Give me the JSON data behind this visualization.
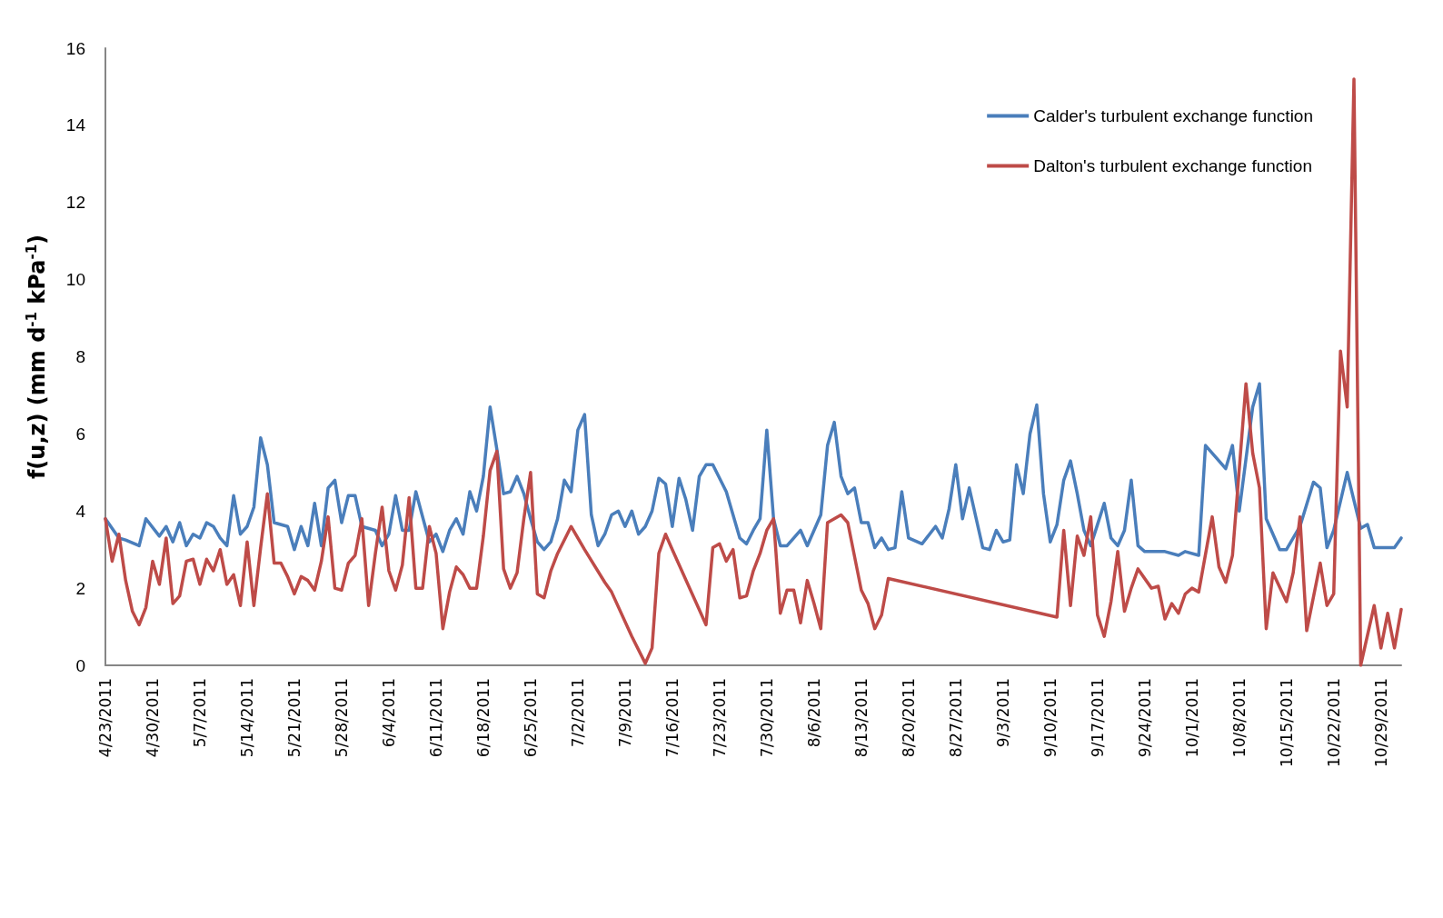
{
  "chart_data": {
    "type": "line",
    "ylabel": "f(u,z) (mm d$^{-1}$ kPa$^{-1}$)",
    "xlim": [
      "2011-04-23",
      "2011-11-01"
    ],
    "ylim": [
      0,
      16
    ],
    "yticks": [
      0,
      2,
      4,
      6,
      8,
      10,
      12,
      14,
      16
    ],
    "xticks": [
      {
        "value": "2011-04-23",
        "label": "4/23/2011"
      },
      {
        "value": "2011-04-30",
        "label": "4/30/2011"
      },
      {
        "value": "2011-05-07",
        "label": "5/7/2011"
      },
      {
        "value": "2011-05-14",
        "label": "5/14/2011"
      },
      {
        "value": "2011-05-21",
        "label": "5/21/2011"
      },
      {
        "value": "2011-05-28",
        "label": "5/28/2011"
      },
      {
        "value": "2011-06-04",
        "label": "6/4/2011"
      },
      {
        "value": "2011-06-11",
        "label": "6/11/2011"
      },
      {
        "value": "2011-06-18",
        "label": "6/18/2011"
      },
      {
        "value": "2011-06-25",
        "label": "6/25/2011"
      },
      {
        "value": "2011-07-02",
        "label": "7/2/2011"
      },
      {
        "value": "2011-07-09",
        "label": "7/9/2011"
      },
      {
        "value": "2011-07-16",
        "label": "7/16/2011"
      },
      {
        "value": "2011-07-23",
        "label": "7/23/2011"
      },
      {
        "value": "2011-07-30",
        "label": "7/30/2011"
      },
      {
        "value": "2011-08-06",
        "label": "8/6/2011"
      },
      {
        "value": "2011-08-13",
        "label": "8/13/2011"
      },
      {
        "value": "2011-08-20",
        "label": "8/20/2011"
      },
      {
        "value": "2011-08-27",
        "label": "8/27/2011"
      },
      {
        "value": "2011-09-03",
        "label": "9/3/2011"
      },
      {
        "value": "2011-09-10",
        "label": "9/10/2011"
      },
      {
        "value": "2011-09-17",
        "label": "9/17/2011"
      },
      {
        "value": "2011-09-24",
        "label": "9/24/2011"
      },
      {
        "value": "2011-10-01",
        "label": "10/1/2011"
      },
      {
        "value": "2011-10-08",
        "label": "10/8/2011"
      },
      {
        "value": "2011-10-15",
        "label": "10/15/2011"
      },
      {
        "value": "2011-10-22",
        "label": "10/22/2011"
      },
      {
        "value": "2011-10-29",
        "label": "10/29/2011"
      }
    ],
    "grid": false,
    "legend": "top right",
    "marker": "none",
    "line_style": "solid",
    "series": [
      {
        "name": "Calder's turbulent exchange function",
        "color": "#4a7ebb",
        "x": [
          "2011-04-23",
          "2011-04-25",
          "2011-04-26",
          "2011-04-28",
          "2011-04-29",
          "2011-05-01",
          "2011-05-02",
          "2011-05-03",
          "2011-05-04",
          "2011-05-05",
          "2011-05-06",
          "2011-05-07",
          "2011-05-08",
          "2011-05-09",
          "2011-05-10",
          "2011-05-11",
          "2011-05-12",
          "2011-05-13",
          "2011-05-14",
          "2011-05-15",
          "2011-05-16",
          "2011-05-17",
          "2011-05-18",
          "2011-05-20",
          "2011-05-21",
          "2011-05-22",
          "2011-05-23",
          "2011-05-24",
          "2011-05-25",
          "2011-05-26",
          "2011-05-27",
          "2011-05-28",
          "2011-05-29",
          "2011-05-30",
          "2011-05-31",
          "2011-06-02",
          "2011-06-03",
          "2011-06-04",
          "2011-06-05",
          "2011-06-06",
          "2011-06-07",
          "2011-06-08",
          "2011-06-10",
          "2011-06-11",
          "2011-06-12",
          "2011-06-13",
          "2011-06-14",
          "2011-06-15",
          "2011-06-16",
          "2011-06-17",
          "2011-06-18",
          "2011-06-19",
          "2011-06-20",
          "2011-06-21",
          "2011-06-22",
          "2011-06-23",
          "2011-06-24",
          "2011-06-25",
          "2011-06-26",
          "2011-06-27",
          "2011-06-28",
          "2011-06-29",
          "2011-06-30",
          "2011-07-01",
          "2011-07-02",
          "2011-07-03",
          "2011-07-04",
          "2011-07-05",
          "2011-07-06",
          "2011-07-07",
          "2011-07-08",
          "2011-07-09",
          "2011-07-10",
          "2011-07-11",
          "2011-07-12",
          "2011-07-13",
          "2011-07-14",
          "2011-07-15",
          "2011-07-16",
          "2011-07-17",
          "2011-07-18",
          "2011-07-19",
          "2011-07-20",
          "2011-07-21",
          "2011-07-22",
          "2011-07-24",
          "2011-07-25",
          "2011-07-26",
          "2011-07-27",
          "2011-07-28",
          "2011-07-29",
          "2011-07-30",
          "2011-07-31",
          "2011-08-01",
          "2011-08-02",
          "2011-08-04",
          "2011-08-05",
          "2011-08-07",
          "2011-08-08",
          "2011-08-09",
          "2011-08-10",
          "2011-08-11",
          "2011-08-12",
          "2011-08-13",
          "2011-08-14",
          "2011-08-15",
          "2011-08-16",
          "2011-08-17",
          "2011-08-18",
          "2011-08-19",
          "2011-08-20",
          "2011-08-22",
          "2011-08-24",
          "2011-08-25",
          "2011-08-26",
          "2011-08-27",
          "2011-08-28",
          "2011-08-29",
          "2011-08-31",
          "2011-09-01",
          "2011-09-02",
          "2011-09-03",
          "2011-09-04",
          "2011-09-05",
          "2011-09-06",
          "2011-09-07",
          "2011-09-08",
          "2011-09-09",
          "2011-09-10",
          "2011-09-11",
          "2011-09-12",
          "2011-09-13",
          "2011-09-14",
          "2011-09-15",
          "2011-09-16",
          "2011-09-17",
          "2011-09-18",
          "2011-09-19",
          "2011-09-20",
          "2011-09-21",
          "2011-09-22",
          "2011-09-23",
          "2011-09-24",
          "2011-09-27",
          "2011-09-29",
          "2011-09-30",
          "2011-10-02",
          "2011-10-03",
          "2011-10-06",
          "2011-10-07",
          "2011-10-08",
          "2011-10-10",
          "2011-10-11",
          "2011-10-12",
          "2011-10-14",
          "2011-10-15",
          "2011-10-17",
          "2011-10-19",
          "2011-10-20",
          "2011-10-21",
          "2011-10-22",
          "2011-10-24",
          "2011-10-26",
          "2011-10-27",
          "2011-10-28",
          "2011-10-31",
          "2011-11-01"
        ],
        "values": [
          3.8,
          3.3,
          3.25,
          3.1,
          3.8,
          3.35,
          3.6,
          3.2,
          3.7,
          3.1,
          3.4,
          3.3,
          3.7,
          3.6,
          3.3,
          3.1,
          4.4,
          3.4,
          3.6,
          4.1,
          5.9,
          5.2,
          3.7,
          3.6,
          3.0,
          3.6,
          3.1,
          4.2,
          3.1,
          4.6,
          4.8,
          3.7,
          4.4,
          4.4,
          3.6,
          3.5,
          3.1,
          3.4,
          4.4,
          3.5,
          3.5,
          4.5,
          3.2,
          3.4,
          2.95,
          3.5,
          3.8,
          3.4,
          4.5,
          4.0,
          4.9,
          6.7,
          5.6,
          4.45,
          4.5,
          4.9,
          4.45,
          3.8,
          3.2,
          3.0,
          3.2,
          3.8,
          4.8,
          4.5,
          6.1,
          6.5,
          3.9,
          3.1,
          3.4,
          3.9,
          4.0,
          3.6,
          4.0,
          3.4,
          3.6,
          4.0,
          4.85,
          4.7,
          3.6,
          4.85,
          4.3,
          3.5,
          4.9,
          5.2,
          5.2,
          4.5,
          3.9,
          3.3,
          3.15,
          3.5,
          3.8,
          6.1,
          3.8,
          3.1,
          3.1,
          3.5,
          3.1,
          3.9,
          5.7,
          6.3,
          4.9,
          4.45,
          4.6,
          3.7,
          3.7,
          3.05,
          3.3,
          3.0,
          3.05,
          4.5,
          3.3,
          3.15,
          3.6,
          3.3,
          4.05,
          5.2,
          3.8,
          4.6,
          3.05,
          3.0,
          3.5,
          3.2,
          3.25,
          5.2,
          4.45,
          6.0,
          6.75,
          4.45,
          3.2,
          3.65,
          4.8,
          5.3,
          4.45,
          3.5,
          3.1,
          3.65,
          4.2,
          3.3,
          3.1,
          3.5,
          4.8,
          3.1,
          2.95,
          2.95,
          2.85,
          2.95,
          2.85,
          5.7,
          5.1,
          5.7,
          4.0,
          6.7,
          7.3,
          3.8,
          3.0,
          3.0,
          3.6,
          4.75,
          4.6,
          3.05,
          3.5,
          5.0,
          3.55,
          3.65,
          3.05,
          3.05,
          3.3
        ]
      },
      {
        "name": "Dalton's turbulent exchange function",
        "color": "#be4b48",
        "x": [
          "2011-04-23",
          "2011-04-24",
          "2011-04-25",
          "2011-04-26",
          "2011-04-27",
          "2011-04-28",
          "2011-04-29",
          "2011-04-30",
          "2011-05-01",
          "2011-05-02",
          "2011-05-03",
          "2011-05-04",
          "2011-05-05",
          "2011-05-06",
          "2011-05-07",
          "2011-05-08",
          "2011-05-09",
          "2011-05-10",
          "2011-05-11",
          "2011-05-12",
          "2011-05-13",
          "2011-05-14",
          "2011-05-15",
          "2011-05-16",
          "2011-05-17",
          "2011-05-18",
          "2011-05-19",
          "2011-05-20",
          "2011-05-21",
          "2011-05-22",
          "2011-05-23",
          "2011-05-24",
          "2011-05-25",
          "2011-05-26",
          "2011-05-27",
          "2011-05-28",
          "2011-05-29",
          "2011-05-30",
          "2011-05-31",
          "2011-06-01",
          "2011-06-02",
          "2011-06-03",
          "2011-06-04",
          "2011-06-05",
          "2011-06-06",
          "2011-06-07",
          "2011-06-08",
          "2011-06-09",
          "2011-06-10",
          "2011-06-11",
          "2011-06-12",
          "2011-06-13",
          "2011-06-14",
          "2011-06-15",
          "2011-06-16",
          "2011-06-17",
          "2011-06-18",
          "2011-06-19",
          "2011-06-20",
          "2011-06-21",
          "2011-06-22",
          "2011-06-23",
          "2011-06-24",
          "2011-06-25",
          "2011-06-26",
          "2011-06-27",
          "2011-06-28",
          "2011-06-29",
          "2011-07-01",
          "2011-07-03",
          "2011-07-06",
          "2011-07-07",
          "2011-07-10",
          "2011-07-12",
          "2011-07-13",
          "2011-07-14",
          "2011-07-15",
          "2011-07-16",
          "2011-07-21",
          "2011-07-22",
          "2011-07-23",
          "2011-07-24",
          "2011-07-25",
          "2011-07-26",
          "2011-07-27",
          "2011-07-28",
          "2011-07-29",
          "2011-07-30",
          "2011-07-31",
          "2011-08-01",
          "2011-08-02",
          "2011-08-03",
          "2011-08-04",
          "2011-08-05",
          "2011-08-06",
          "2011-08-07",
          "2011-08-08",
          "2011-08-09",
          "2011-08-10",
          "2011-08-11",
          "2011-08-13",
          "2011-08-14",
          "2011-08-15",
          "2011-08-16",
          "2011-08-17",
          "2011-09-11",
          "2011-09-12",
          "2011-09-13",
          "2011-09-14",
          "2011-09-15",
          "2011-09-16",
          "2011-09-17",
          "2011-09-18",
          "2011-09-19",
          "2011-09-20",
          "2011-09-21",
          "2011-09-22",
          "2011-09-23",
          "2011-09-25",
          "2011-09-26",
          "2011-09-27",
          "2011-09-28",
          "2011-09-29",
          "2011-09-30",
          "2011-10-01",
          "2011-10-02",
          "2011-10-04",
          "2011-10-05",
          "2011-10-06",
          "2011-10-07",
          "2011-10-09",
          "2011-10-10",
          "2011-10-11",
          "2011-10-12",
          "2011-10-13",
          "2011-10-15",
          "2011-10-16",
          "2011-10-17",
          "2011-10-18",
          "2011-10-20",
          "2011-10-21",
          "2011-10-22",
          "2011-10-23",
          "2011-10-24",
          "2011-10-25",
          "2011-10-26",
          "2011-10-28",
          "2011-10-29",
          "2011-10-30",
          "2011-10-31",
          "2011-11-01"
        ],
        "values": [
          3.8,
          2.7,
          3.4,
          2.2,
          1.4,
          1.05,
          1.5,
          2.7,
          2.1,
          3.3,
          1.6,
          1.8,
          2.7,
          2.75,
          2.1,
          2.75,
          2.45,
          3.0,
          2.1,
          2.35,
          1.55,
          3.2,
          1.55,
          3.05,
          4.45,
          2.65,
          2.65,
          2.3,
          1.85,
          2.3,
          2.2,
          1.95,
          2.7,
          3.85,
          2.0,
          1.95,
          2.65,
          2.85,
          3.8,
          1.55,
          2.9,
          4.1,
          2.45,
          1.95,
          2.6,
          4.35,
          2.0,
          2.0,
          3.6,
          2.9,
          0.95,
          1.9,
          2.55,
          2.35,
          2.0,
          2.0,
          3.35,
          5.05,
          5.55,
          2.5,
          2.0,
          2.4,
          3.8,
          5.0,
          1.85,
          1.75,
          2.45,
          2.9,
          3.6,
          3.0,
          2.15,
          1.9,
          0.75,
          0.05,
          0.45,
          2.9,
          3.4,
          3.0,
          1.05,
          3.05,
          3.15,
          2.7,
          3.0,
          1.75,
          1.8,
          2.45,
          2.9,
          3.5,
          3.8,
          1.35,
          1.95,
          1.95,
          1.1,
          2.2,
          1.6,
          0.95,
          3.7,
          3.8,
          3.9,
          3.7,
          1.95,
          1.6,
          0.95,
          1.3,
          2.25,
          1.25,
          3.5,
          1.55,
          3.35,
          2.85,
          3.85,
          1.3,
          0.75,
          1.65,
          2.95,
          1.4,
          2.0,
          2.5,
          2.0,
          2.05,
          1.2,
          1.6,
          1.35,
          1.85,
          2.0,
          1.9,
          3.85,
          2.55,
          2.15,
          2.85,
          7.3,
          5.5,
          4.6,
          0.95,
          2.4,
          1.65,
          2.4,
          3.85,
          0.9,
          2.65,
          1.55,
          1.85,
          8.15,
          6.7,
          15.2,
          0,
          1.55,
          0.45,
          1.35,
          0.45,
          1.45
        ]
      }
    ]
  }
}
